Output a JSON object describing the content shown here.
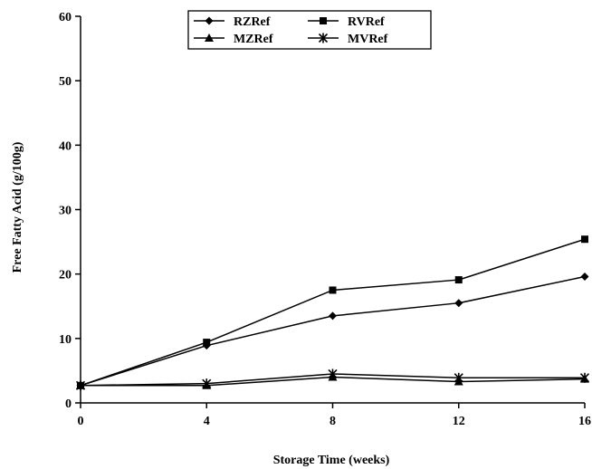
{
  "chart_data": {
    "type": "line",
    "title": "",
    "xlabel": "Storage Time (weeks)",
    "ylabel": "Free Fatty Acid (g/100g)",
    "x": [
      0,
      4,
      8,
      12,
      16
    ],
    "xticks": [
      "0",
      "4",
      "8",
      "12",
      "16"
    ],
    "yticks": [
      "0",
      "10",
      "20",
      "30",
      "40",
      "50",
      "60"
    ],
    "xlim": [
      0,
      16
    ],
    "ylim": [
      0,
      60
    ],
    "grid": false,
    "legend_position": "top-center",
    "series": [
      {
        "name": "RZRef",
        "marker": "diamond",
        "values": [
          2.7,
          8.9,
          13.5,
          15.5,
          19.6
        ]
      },
      {
        "name": "RVRef",
        "marker": "square",
        "values": [
          2.7,
          9.4,
          17.5,
          19.1,
          25.4
        ]
      },
      {
        "name": "MZRef",
        "marker": "triangle",
        "values": [
          2.7,
          2.7,
          4.0,
          3.3,
          3.7
        ]
      },
      {
        "name": "MVRef",
        "marker": "star",
        "values": [
          2.7,
          3.0,
          4.5,
          3.9,
          3.9
        ]
      }
    ]
  }
}
